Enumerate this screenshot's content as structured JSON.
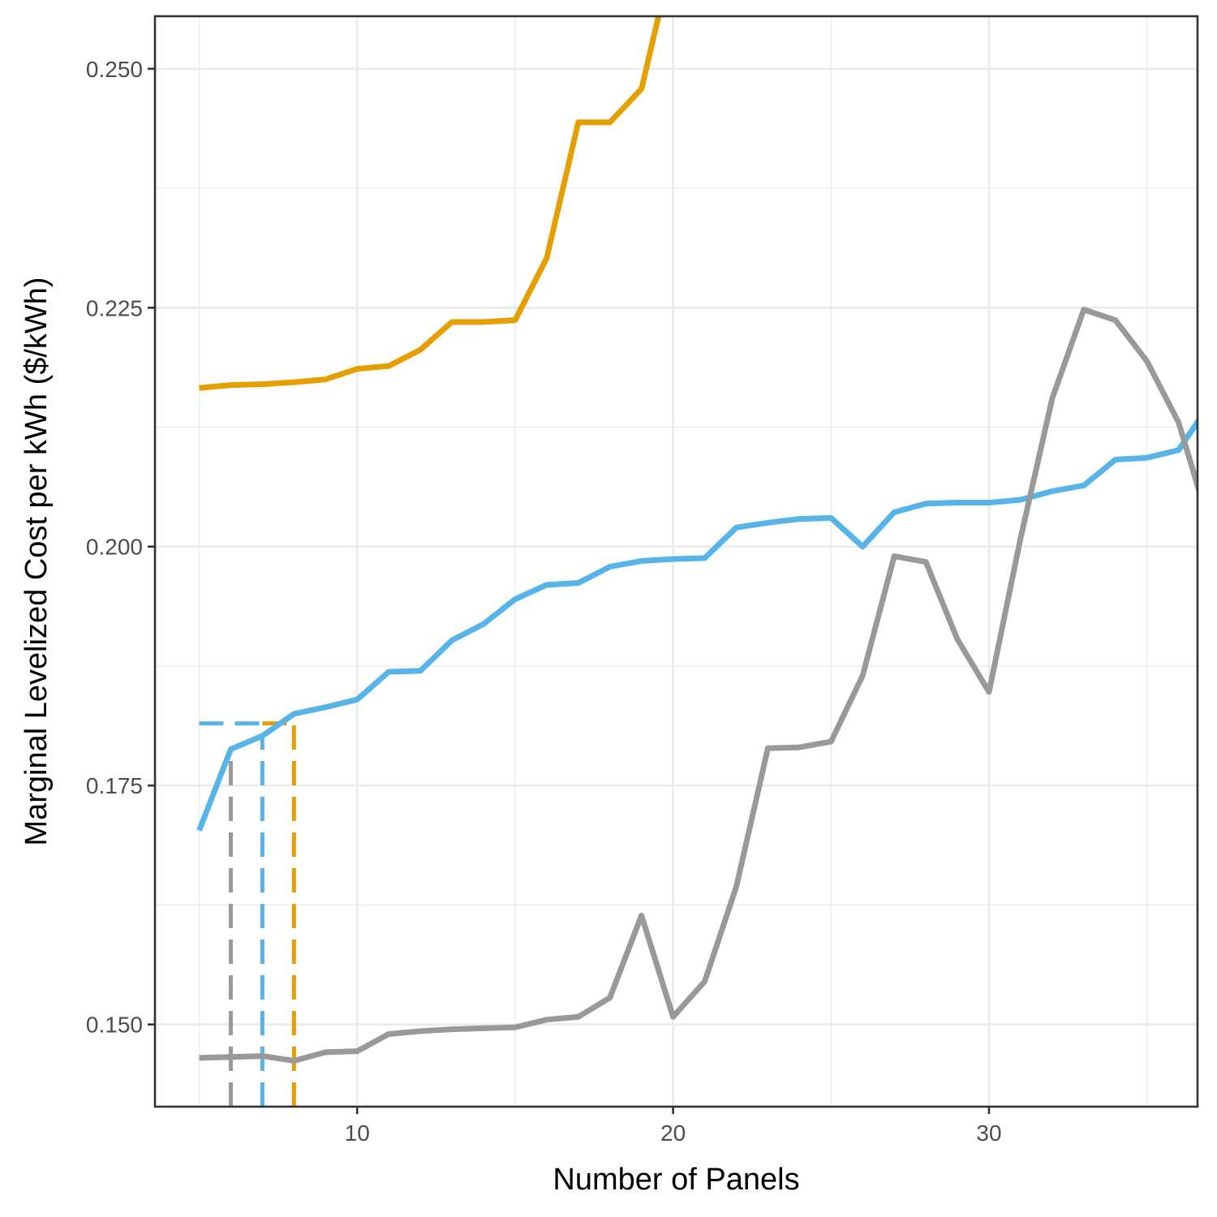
{
  "chart_data": {
    "type": "line",
    "xlabel": "Number of Panels",
    "ylabel": "Marginal Levelized Cost per kWh ($/kWh)",
    "xlim": [
      3.6,
      36.6
    ],
    "ylim": [
      0.1414,
      0.2555
    ],
    "x_major_ticks": [
      10,
      20,
      30
    ],
    "x_tick_labels": [
      "10",
      "20",
      "30"
    ],
    "x_minor_ticks": [
      5,
      15,
      25,
      35
    ],
    "y_major_ticks": [
      0.15,
      0.175,
      0.2,
      0.225,
      0.25
    ],
    "y_tick_labels": [
      "0.150",
      "0.175",
      "0.200",
      "0.225",
      "0.250"
    ],
    "y_minor_ticks": [
      0.1625,
      0.1875,
      0.2125,
      0.2375
    ],
    "grid": true,
    "legend": "none",
    "series": [
      {
        "color": "#E69F00",
        "x": [
          5,
          6,
          7,
          8,
          9,
          10,
          11,
          12,
          13,
          14,
          15,
          16,
          17,
          18,
          19,
          20
        ],
        "y": [
          0.2166,
          0.2169,
          0.217,
          0.2172,
          0.2175,
          0.2186,
          0.2189,
          0.2206,
          0.2235,
          0.2235,
          0.2237,
          0.2302,
          0.2444,
          0.2444,
          0.2479,
          0.262
        ]
      },
      {
        "color": "#56B4E9",
        "x": [
          5,
          6,
          7,
          8,
          9,
          10,
          11,
          12,
          13,
          14,
          15,
          16,
          17,
          18,
          19,
          20,
          21,
          22,
          23,
          24,
          25,
          26,
          27,
          28,
          29,
          30,
          31,
          32,
          33,
          34,
          35,
          36,
          37
        ],
        "y": [
          0.1703,
          0.1788,
          0.1802,
          0.1825,
          0.1832,
          0.184,
          0.1869,
          0.187,
          0.1902,
          0.1919,
          0.1945,
          0.196,
          0.1962,
          0.1979,
          0.1985,
          0.1987,
          0.1988,
          0.202,
          0.2025,
          0.2029,
          0.203,
          0.2,
          0.2036,
          0.2045,
          0.2046,
          0.2046,
          0.2049,
          0.2058,
          0.2064,
          0.2091,
          0.2093,
          0.2101,
          0.215
        ]
      },
      {
        "color": "#999999",
        "x": [
          5,
          6,
          7,
          8,
          9,
          10,
          11,
          12,
          13,
          14,
          15,
          16,
          17,
          18,
          19,
          20,
          21,
          22,
          23,
          24,
          25,
          26,
          27,
          28,
          29,
          30,
          31,
          32,
          33,
          34,
          35,
          36,
          37
        ],
        "y": [
          0.1465,
          0.1466,
          0.1467,
          0.1462,
          0.1471,
          0.1472,
          0.149,
          0.1493,
          0.1495,
          0.1496,
          0.1497,
          0.1505,
          0.1508,
          0.1528,
          0.1614,
          0.1508,
          0.1545,
          0.1644,
          0.1789,
          0.179,
          0.1796,
          0.1865,
          0.199,
          0.1984,
          0.1903,
          0.1848,
          0.2009,
          0.2155,
          0.2248,
          0.2237,
          0.2194,
          0.213,
          0.202
        ]
      }
    ],
    "reference_lines": [
      {
        "color": "#999999",
        "type": "vertical",
        "x": 6,
        "y_from": 0.1414,
        "y_to": 0.1788
      },
      {
        "color": "#56B4E9",
        "type": "vertical",
        "x": 7,
        "y_from": 0.1414,
        "y_to": 0.1802
      },
      {
        "color": "#E69F00",
        "type": "vertical",
        "x": 8,
        "y_from": 0.1414,
        "y_to": 0.1815
      },
      {
        "color": "#56B4E9",
        "type": "horizontal",
        "y": 0.1815,
        "x_from": 5,
        "x_to": 7
      },
      {
        "color": "#E69F00",
        "type": "horizontal",
        "y": 0.1815,
        "x_from": 7,
        "x_to": 8
      }
    ]
  }
}
